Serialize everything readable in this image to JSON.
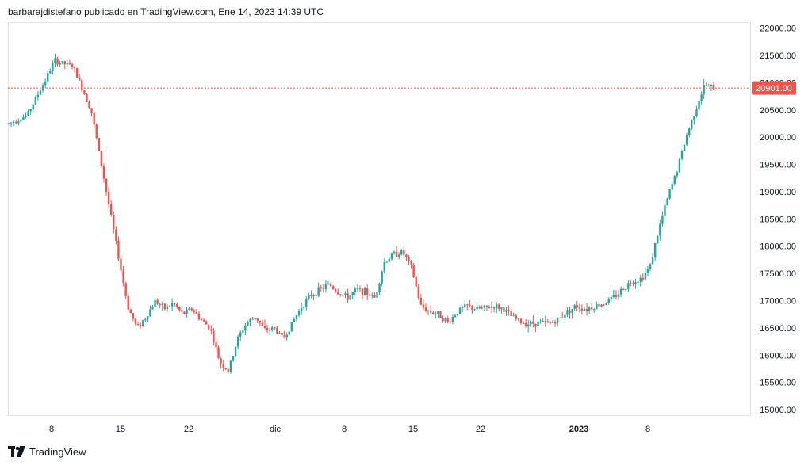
{
  "header": {
    "text": "barbarajdistefano publicado en TradingView.com, Ene 14, 2023 14:39 UTC"
  },
  "footer": {
    "brand": "TradingView",
    "logo_icon": "tradingview-logo-icon"
  },
  "colors": {
    "up": "#26a69a",
    "down": "#ef5350",
    "price_line": "#ef5350",
    "price_tag_bg": "#ef5350",
    "axis_text": "#131722",
    "frame": "#e0e3eb"
  },
  "chart_data": {
    "type": "candlestick",
    "x_labels": [
      "8",
      "15",
      "22",
      "dic",
      "8",
      "15",
      "22",
      "2023",
      "8"
    ],
    "x_label_bold": [
      "2023"
    ],
    "y_ticks": [
      "22000.00",
      "21500.00",
      "21000.00",
      "20500.00",
      "20000.00",
      "19500.00",
      "19000.00",
      "18500.00",
      "18000.00",
      "17500.00",
      "17000.00",
      "16500.00",
      "16000.00",
      "15500.00",
      "15000.00"
    ],
    "ylim": [
      14900,
      22110
    ],
    "current_price": 20901,
    "current_price_label": "20901.00",
    "grid": false,
    "price_path": [
      [
        0,
        20250
      ],
      [
        2,
        20400
      ],
      [
        4,
        21050
      ],
      [
        5,
        21400
      ],
      [
        6,
        21350
      ],
      [
        7,
        21300
      ],
      [
        8,
        20900
      ],
      [
        9,
        20500
      ],
      [
        10,
        19600
      ],
      [
        11,
        18700
      ],
      [
        12,
        17800
      ],
      [
        13,
        16900
      ],
      [
        14,
        16500
      ],
      [
        15,
        16700
      ],
      [
        16,
        17000
      ],
      [
        17,
        16850
      ],
      [
        18,
        16950
      ],
      [
        19,
        16750
      ],
      [
        20,
        16850
      ],
      [
        21,
        16650
      ],
      [
        22,
        16500
      ],
      [
        23,
        15900
      ],
      [
        24,
        15700
      ],
      [
        25,
        16300
      ],
      [
        26,
        16600
      ],
      [
        27,
        16700
      ],
      [
        28,
        16450
      ],
      [
        29,
        16500
      ],
      [
        30,
        16300
      ],
      [
        31,
        16600
      ],
      [
        32,
        16900
      ],
      [
        33,
        17100
      ],
      [
        34,
        17200
      ],
      [
        35,
        17300
      ],
      [
        36,
        17150
      ],
      [
        37,
        17050
      ],
      [
        38,
        17200
      ],
      [
        39,
        17150
      ],
      [
        40,
        17050
      ],
      [
        41,
        17700
      ],
      [
        42,
        17850
      ],
      [
        43,
        17900
      ],
      [
        44,
        17600
      ],
      [
        45,
        16900
      ],
      [
        46,
        16800
      ],
      [
        47,
        16750
      ],
      [
        48,
        16600
      ],
      [
        49,
        16800
      ],
      [
        50,
        16900
      ],
      [
        51,
        16850
      ],
      [
        52,
        16860
      ],
      [
        53,
        16900
      ],
      [
        54,
        16850
      ],
      [
        55,
        16700
      ],
      [
        56,
        16600
      ],
      [
        57,
        16580
      ],
      [
        58,
        16600
      ],
      [
        59,
        16580
      ],
      [
        60,
        16650
      ],
      [
        61,
        16800
      ],
      [
        62,
        16900
      ],
      [
        63,
        16850
      ],
      [
        64,
        16900
      ],
      [
        65,
        16950
      ],
      [
        66,
        17050
      ],
      [
        67,
        17200
      ],
      [
        68,
        17350
      ],
      [
        69,
        17400
      ],
      [
        70,
        17600
      ],
      [
        71,
        18300
      ],
      [
        72,
        18900
      ],
      [
        73,
        19400
      ],
      [
        74,
        20000
      ],
      [
        75,
        20500
      ],
      [
        76,
        20950
      ],
      [
        77,
        20900
      ]
    ]
  }
}
